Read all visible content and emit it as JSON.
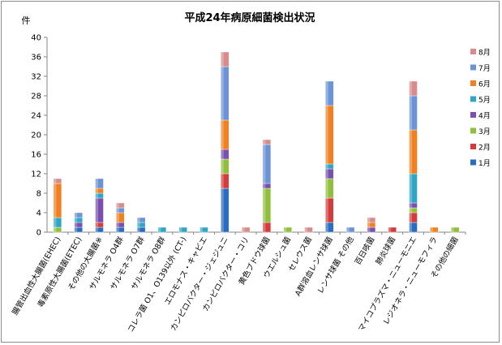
{
  "chart_data": {
    "type": "bar",
    "stacked": true,
    "title": "平成24年病原細菌検出状況",
    "ylabel": "件",
    "ylim": [
      0,
      40
    ],
    "yticks": [
      0,
      4,
      8,
      12,
      16,
      20,
      24,
      28,
      32,
      36,
      40
    ],
    "grid": false,
    "legend_position": "right",
    "categories": [
      "腸管出血性大腸菌(EHEC)",
      "毒素原性大腸菌(ETEC)",
      "その他の大腸菌※",
      "サルモネラ O4群",
      "サルモネラ O7群",
      "サルモネラ O8群",
      "コレラ菌 O1、O139以外 (CT-)",
      "エロモナス・キャビエ",
      "カンピロバクター・ジェジュニ",
      "カンピロバクター・コリ",
      "黄色ブドウ球菌",
      "ウエルシュ菌",
      "セレウス菌",
      "A群溶血レンサ球菌",
      "レンサ球菌 その他",
      "百日咳菌",
      "肺炎球菌",
      "マイコプラズマ・ニューモニエ",
      "レジオネラ・ニューモフィラ",
      "その他の細菌"
    ],
    "series": [
      {
        "name": "1月",
        "color": "#2a6cc0",
        "values": [
          0,
          1,
          1,
          1,
          1,
          0,
          0,
          0,
          9,
          0,
          0,
          0,
          0,
          2,
          0,
          0,
          0,
          2,
          0,
          0
        ]
      },
      {
        "name": "2月",
        "color": "#d43c3c",
        "values": [
          0,
          0,
          1,
          0,
          0,
          0,
          0,
          0,
          3,
          0,
          2,
          0,
          0,
          5,
          0,
          0,
          1,
          2,
          0,
          0
        ]
      },
      {
        "name": "3月",
        "color": "#8fbf3c",
        "values": [
          1,
          0,
          0,
          0,
          0,
          0,
          0,
          0,
          3,
          0,
          7,
          1,
          0,
          4,
          0,
          0,
          0,
          1,
          0,
          1
        ]
      },
      {
        "name": "4月",
        "color": "#7a4fb0",
        "values": [
          0,
          1,
          5,
          1,
          0,
          0,
          0,
          0,
          2,
          0,
          1,
          0,
          0,
          2,
          0,
          1,
          0,
          1,
          0,
          0
        ]
      },
      {
        "name": "5月",
        "color": "#2fa7c4",
        "values": [
          2,
          1,
          1,
          0,
          1,
          1,
          1,
          1,
          0,
          0,
          0,
          0,
          0,
          1,
          0,
          0,
          0,
          6,
          0,
          0
        ]
      },
      {
        "name": "6月",
        "color": "#f08020",
        "values": [
          7,
          0,
          1,
          2,
          0,
          0,
          0,
          0,
          6,
          0,
          0,
          0,
          0,
          12,
          0,
          1,
          0,
          9,
          1,
          0
        ]
      },
      {
        "name": "7月",
        "color": "#6b93d6",
        "values": [
          0,
          1,
          2,
          1,
          1,
          0,
          0,
          0,
          11,
          0,
          8,
          0,
          0,
          5,
          1,
          0,
          0,
          7,
          0,
          0
        ]
      },
      {
        "name": "8月",
        "color": "#d98a8a",
        "values": [
          1,
          0,
          0,
          1,
          0,
          0,
          0,
          0,
          3,
          1,
          1,
          0,
          1,
          0,
          0,
          1,
          0,
          3,
          0,
          0
        ]
      }
    ]
  }
}
